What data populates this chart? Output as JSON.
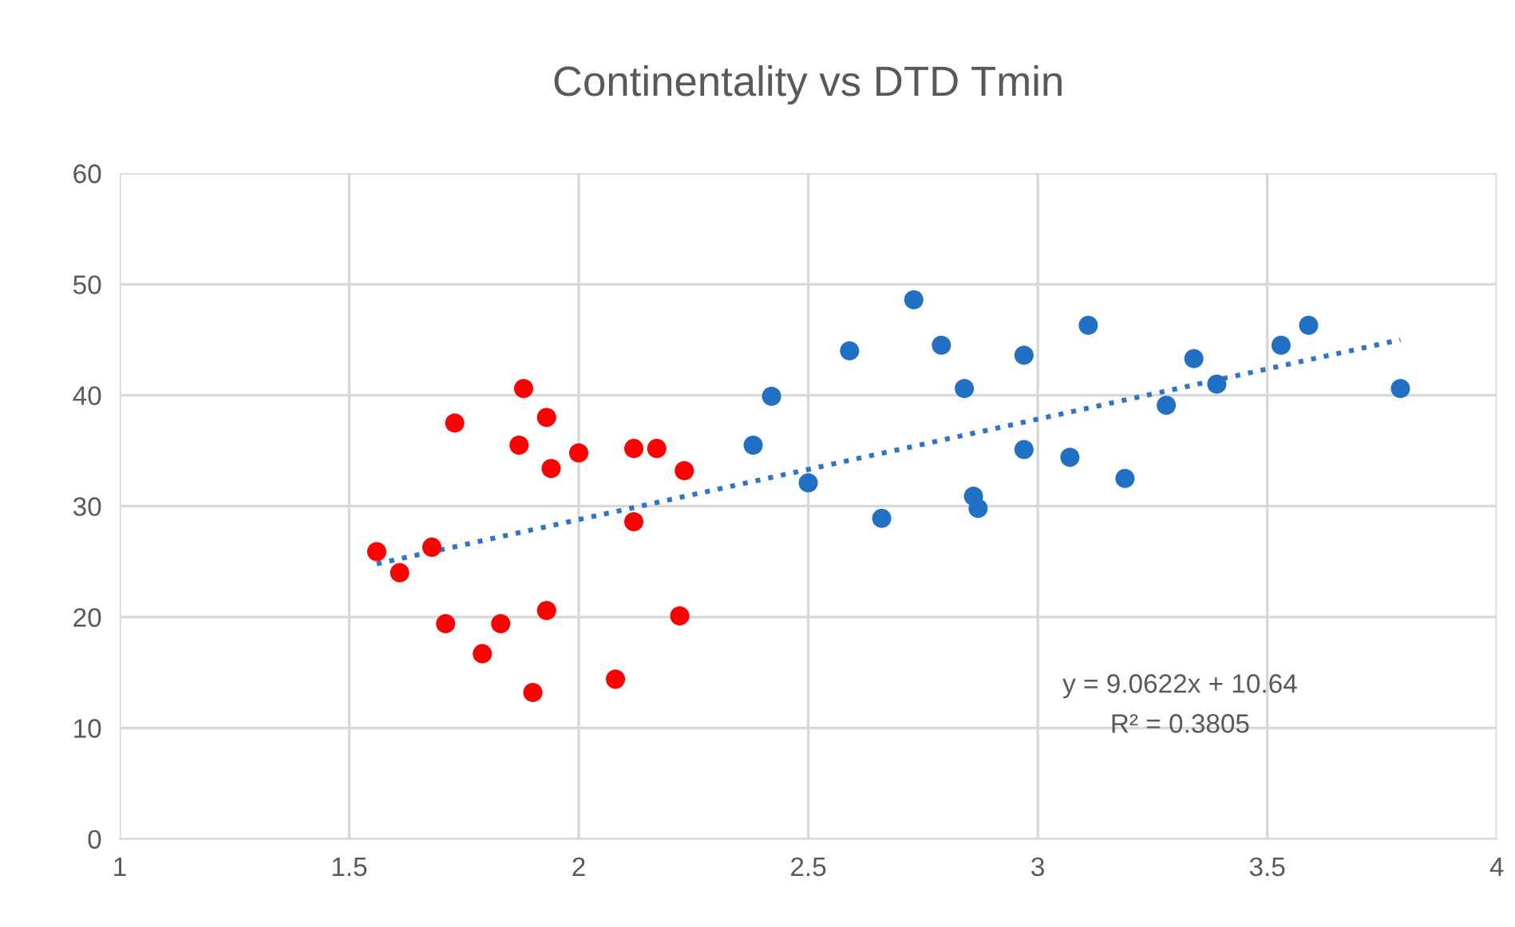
{
  "chart_data": {
    "type": "scatter",
    "title": "Continentality vs DTD Tmin",
    "xlim": [
      1,
      4
    ],
    "xticks": [
      1,
      1.5,
      2,
      2.5,
      3,
      3.5,
      4
    ],
    "ylim": [
      0,
      60
    ],
    "yticks": [
      0,
      10,
      20,
      30,
      40,
      50,
      60
    ],
    "grid": true,
    "marker": "circle",
    "series": [
      {
        "color": "#ff0000",
        "x": [
          1.56,
          1.61,
          1.68,
          1.73,
          1.71,
          1.79,
          1.83,
          1.88,
          1.87,
          1.93,
          1.94,
          1.9,
          1.93,
          2.0,
          2.08,
          2.12,
          2.12,
          2.17,
          2.23,
          2.22
        ],
        "values": [
          25.9,
          24.0,
          26.3,
          37.5,
          19.4,
          16.7,
          19.4,
          40.6,
          35.5,
          38.0,
          33.4,
          13.2,
          20.6,
          34.8,
          14.4,
          28.6,
          35.2,
          35.2,
          33.2,
          20.1
        ]
      },
      {
        "color": "#2270c4",
        "x": [
          2.38,
          2.42,
          2.5,
          2.59,
          2.66,
          2.73,
          2.79,
          2.84,
          2.86,
          2.87,
          2.97,
          2.97,
          3.07,
          3.11,
          3.19,
          3.28,
          3.34,
          3.39,
          3.53,
          3.59,
          3.79
        ],
        "values": [
          35.5,
          39.9,
          32.1,
          44.0,
          28.9,
          48.6,
          44.5,
          40.6,
          30.9,
          29.8,
          43.6,
          35.1,
          34.4,
          46.3,
          32.5,
          39.1,
          43.3,
          41.0,
          44.5,
          46.3,
          40.6
        ]
      },
      {
        "type": "line",
        "color": "#2e75c6",
        "line_style": "dotted",
        "marker": "none",
        "x": [
          1.56,
          3.79
        ],
        "values": [
          24.8,
          45.0
        ]
      }
    ],
    "annotations": [
      "y = 9.0622x + 10.64",
      "R² = 0.3805"
    ]
  }
}
